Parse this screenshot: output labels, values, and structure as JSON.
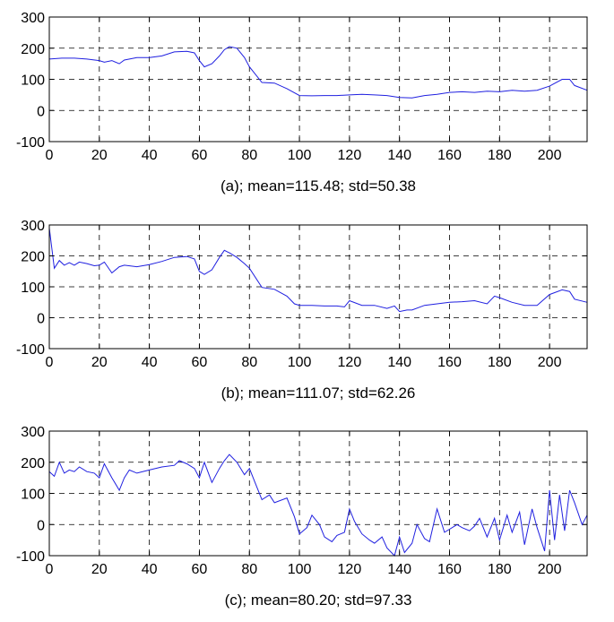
{
  "chart_data": [
    {
      "type": "line",
      "caption": "(a); mean=115.48; std=50.38",
      "xlim": [
        0,
        215
      ],
      "ylim": [
        -100,
        300
      ],
      "xticks": [
        0,
        20,
        40,
        60,
        80,
        100,
        120,
        140,
        160,
        180,
        200
      ],
      "yticks": [
        -100,
        0,
        100,
        200,
        300
      ],
      "grid": true,
      "series": [
        {
          "color": "#2020e0",
          "x": [
            0,
            5,
            10,
            15,
            20,
            22,
            25,
            28,
            30,
            35,
            40,
            45,
            50,
            55,
            58,
            60,
            62,
            65,
            68,
            70,
            72,
            75,
            78,
            80,
            85,
            90,
            95,
            100,
            105,
            110,
            115,
            120,
            125,
            130,
            135,
            140,
            145,
            150,
            155,
            160,
            165,
            170,
            175,
            180,
            185,
            190,
            195,
            200,
            205,
            208,
            210,
            215
          ],
          "y": [
            165,
            168,
            168,
            165,
            160,
            155,
            160,
            150,
            162,
            170,
            170,
            175,
            188,
            190,
            185,
            160,
            140,
            150,
            175,
            195,
            205,
            200,
            170,
            140,
            90,
            88,
            70,
            48,
            47,
            48,
            48,
            50,
            52,
            50,
            48,
            42,
            40,
            48,
            52,
            58,
            60,
            58,
            62,
            60,
            65,
            62,
            65,
            78,
            100,
            100,
            80,
            65
          ]
        }
      ]
    },
    {
      "type": "line",
      "caption": "(b); mean=111.07; std=62.26",
      "xlim": [
        0,
        215
      ],
      "ylim": [
        -100,
        300
      ],
      "xticks": [
        0,
        20,
        40,
        60,
        80,
        100,
        120,
        140,
        160,
        180,
        200
      ],
      "yticks": [
        -100,
        0,
        100,
        200,
        300
      ],
      "grid": true,
      "series": [
        {
          "color": "#2020e0",
          "x": [
            0,
            2,
            4,
            6,
            8,
            10,
            12,
            15,
            18,
            20,
            22,
            25,
            28,
            30,
            35,
            40,
            45,
            50,
            55,
            58,
            60,
            62,
            65,
            68,
            70,
            72,
            75,
            78,
            80,
            85,
            90,
            95,
            98,
            100,
            105,
            110,
            115,
            118,
            120,
            125,
            130,
            135,
            138,
            140,
            143,
            145,
            150,
            155,
            160,
            165,
            170,
            175,
            178,
            180,
            185,
            190,
            195,
            200,
            205,
            208,
            210,
            215
          ],
          "y": [
            290,
            160,
            185,
            170,
            178,
            170,
            180,
            175,
            168,
            170,
            180,
            145,
            165,
            170,
            165,
            172,
            182,
            195,
            198,
            190,
            150,
            140,
            155,
            195,
            218,
            210,
            195,
            175,
            160,
            98,
            92,
            70,
            45,
            40,
            40,
            38,
            38,
            35,
            55,
            40,
            40,
            30,
            38,
            20,
            25,
            25,
            40,
            45,
            50,
            52,
            55,
            45,
            70,
            65,
            50,
            40,
            40,
            75,
            90,
            85,
            60,
            50
          ]
        }
      ]
    },
    {
      "type": "line",
      "caption": "(c); mean=80.20; std=97.33",
      "xlim": [
        0,
        215
      ],
      "ylim": [
        -100,
        300
      ],
      "xticks": [
        0,
        20,
        40,
        60,
        80,
        100,
        120,
        140,
        160,
        180,
        200
      ],
      "yticks": [
        -100,
        0,
        100,
        200,
        300
      ],
      "grid": true,
      "series": [
        {
          "color": "#2020e0",
          "x": [
            0,
            2,
            4,
            6,
            8,
            10,
            12,
            15,
            18,
            20,
            22,
            25,
            28,
            30,
            32,
            35,
            40,
            45,
            50,
            52,
            55,
            58,
            60,
            62,
            65,
            68,
            70,
            72,
            75,
            78,
            80,
            82,
            85,
            88,
            90,
            95,
            98,
            100,
            103,
            105,
            108,
            110,
            113,
            115,
            118,
            120,
            122,
            125,
            128,
            130,
            133,
            135,
            138,
            140,
            142,
            145,
            147,
            150,
            152,
            155,
            158,
            160,
            163,
            165,
            168,
            170,
            172,
            175,
            178,
            180,
            183,
            185,
            188,
            190,
            193,
            195,
            198,
            200,
            202,
            204,
            206,
            208,
            210,
            213,
            215
          ],
          "y": [
            170,
            155,
            200,
            165,
            175,
            170,
            185,
            170,
            165,
            150,
            195,
            150,
            110,
            150,
            175,
            165,
            175,
            185,
            190,
            205,
            195,
            180,
            150,
            200,
            135,
            180,
            205,
            225,
            200,
            160,
            180,
            140,
            80,
            95,
            70,
            85,
            25,
            -30,
            -10,
            30,
            0,
            -40,
            -55,
            -35,
            -25,
            50,
            10,
            -30,
            -50,
            -60,
            -40,
            -75,
            -100,
            -40,
            -90,
            -60,
            0,
            -45,
            -55,
            50,
            -25,
            -15,
            0,
            -10,
            -20,
            -5,
            20,
            -40,
            20,
            -50,
            30,
            -25,
            40,
            -65,
            50,
            -10,
            -85,
            110,
            -50,
            95,
            -20,
            110,
            70,
            0,
            30
          ]
        }
      ]
    }
  ]
}
